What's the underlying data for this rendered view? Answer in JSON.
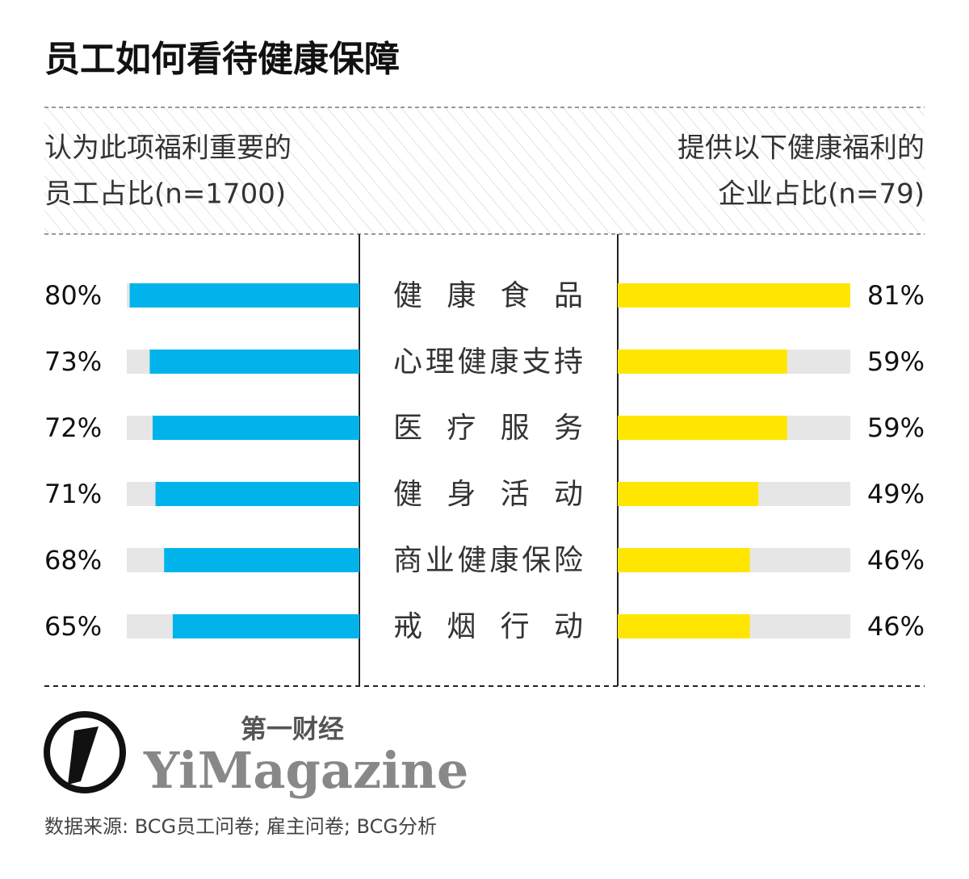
{
  "chart_data": {
    "type": "butterfly",
    "title": "员工如何看待健康保障",
    "left_label": [
      "认为此项福利重要的",
      "员工占比(n=1700)"
    ],
    "right_label": [
      "提供以下健康福利的",
      "企业占比(n=79)"
    ],
    "categories": [
      "健康食品",
      "心理健康支持",
      "医疗服务",
      "健身活动",
      "商业健康保险",
      "戒烟行动"
    ],
    "series": [
      {
        "name": "员工",
        "color": "#00b4eb",
        "values": [
          80,
          73,
          72,
          71,
          68,
          65
        ],
        "value_labels": [
          "80%",
          "73%",
          "72%",
          "71%",
          "68%",
          "65%"
        ]
      },
      {
        "name": "企业",
        "color": "#ffe600",
        "values": [
          81,
          59,
          59,
          49,
          46,
          46
        ],
        "value_labels": [
          "81%",
          "59%",
          "59%",
          "49%",
          "46%",
          "46%"
        ]
      }
    ],
    "xlim": [
      0,
      81
    ],
    "track_color": "#e6e6e6",
    "brand": "第一财经",
    "brand_en": "YiMagazine",
    "source": "数据来源: BCG员工问卷; 雇主问卷; BCG分析"
  }
}
